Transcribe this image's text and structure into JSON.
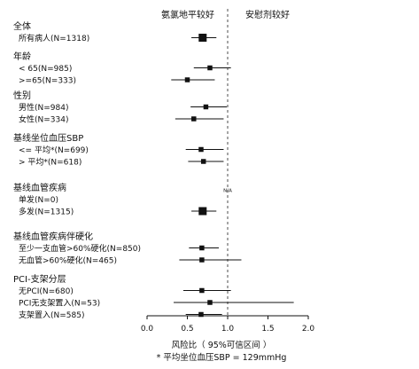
{
  "chart_data": {
    "type": "forest",
    "left_header": "氨氯地平较好",
    "right_header": "安慰剂较好",
    "xlim": [
      0,
      2.0
    ],
    "reference_line": 1.0,
    "xticks": [
      "0.0",
      "0.5",
      "1.0",
      "1.5",
      "2.0"
    ],
    "xlabel": "风险比（ 95%可信区间 ）",
    "footnote": "* 平均坐位血压SBP = 129mmHg",
    "na_text": "N/A",
    "groups": [
      {
        "label": "全体",
        "rows": [
          {
            "label": "所有病人(N=1318)",
            "estimate": 0.69,
            "lower": 0.55,
            "upper": 0.86
          }
        ]
      },
      {
        "label": "年龄",
        "rows": [
          {
            "label": "< 65(N=985)",
            "estimate": 0.78,
            "lower": 0.58,
            "upper": 1.04
          },
          {
            "label": ">=65(N=333)",
            "estimate": 0.5,
            "lower": 0.3,
            "upper": 0.84
          }
        ]
      },
      {
        "label": "性别",
        "rows": [
          {
            "label": "男性(N=984)",
            "estimate": 0.73,
            "lower": 0.54,
            "upper": 0.99
          },
          {
            "label": "女性(N=334)",
            "estimate": 0.58,
            "lower": 0.35,
            "upper": 0.95
          }
        ]
      },
      {
        "label": "基线坐位血压SBP",
        "rows": [
          {
            "label": "<= 平均*(N=699)",
            "estimate": 0.67,
            "lower": 0.48,
            "upper": 0.95
          },
          {
            "label": "> 平均*(N=618)",
            "estimate": 0.7,
            "lower": 0.51,
            "upper": 0.95
          }
        ]
      },
      {
        "label": "基线血管疾病",
        "rows": [
          {
            "label": "单发(N=0)",
            "estimate": null,
            "lower": null,
            "upper": null,
            "note": "N/A"
          },
          {
            "label": "多发(N=1315)",
            "estimate": 0.69,
            "lower": 0.55,
            "upper": 0.86
          }
        ]
      },
      {
        "label": "基线血管疾病伴硬化",
        "rows": [
          {
            "label": "至少一支血管>60%硬化(N=850)",
            "estimate": 0.68,
            "lower": 0.52,
            "upper": 0.89
          },
          {
            "label": "无血管>60%硬化(N=465)",
            "estimate": 0.68,
            "lower": 0.4,
            "upper": 1.17
          }
        ]
      },
      {
        "label": "PCI-支架分层",
        "rows": [
          {
            "label": "无PCI(N=680)",
            "estimate": 0.68,
            "lower": 0.45,
            "upper": 1.04
          },
          {
            "label": "PCI无支架置入(N=53)",
            "estimate": 0.78,
            "lower": 0.33,
            "upper": 1.82
          },
          {
            "label": "支架置入(N=585)",
            "estimate": 0.67,
            "lower": 0.48,
            "upper": 0.93
          }
        ]
      }
    ]
  }
}
